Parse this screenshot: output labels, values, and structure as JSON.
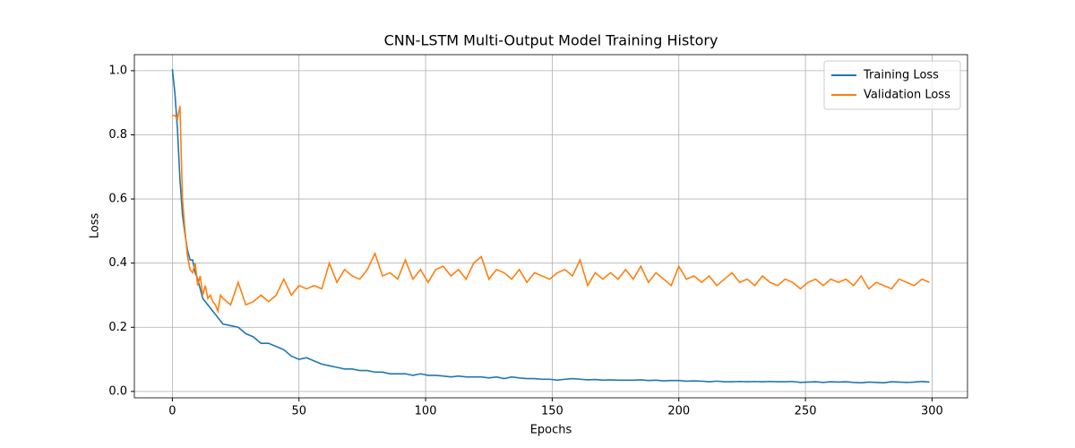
{
  "chart_data": {
    "type": "line",
    "title": "CNN-LSTM Multi-Output Model Training History",
    "x_label": "Epochs",
    "y_label": "Loss",
    "x": [
      0,
      1,
      2,
      3,
      4,
      5,
      6,
      7,
      8,
      9,
      10,
      11,
      12,
      13,
      14,
      15,
      16,
      17,
      18,
      19,
      20,
      23,
      26,
      29,
      32,
      35,
      38,
      41,
      44,
      47,
      50,
      53,
      56,
      59,
      62,
      65,
      68,
      71,
      74,
      77,
      80,
      83,
      86,
      89,
      92,
      95,
      98,
      101,
      104,
      107,
      110,
      113,
      116,
      119,
      122,
      125,
      128,
      131,
      134,
      137,
      140,
      143,
      146,
      149,
      152,
      155,
      158,
      161,
      164,
      167,
      170,
      173,
      176,
      179,
      182,
      185,
      188,
      191,
      194,
      197,
      200,
      203,
      206,
      209,
      212,
      215,
      218,
      221,
      224,
      227,
      230,
      233,
      236,
      239,
      242,
      245,
      248,
      251,
      254,
      257,
      260,
      263,
      266,
      269,
      272,
      275,
      278,
      281,
      284,
      287,
      290,
      293,
      296,
      299
    ],
    "series": [
      {
        "name": "Training Loss",
        "color": "#1f77b4",
        "values": [
          1.005,
          0.93,
          0.82,
          0.66,
          0.55,
          0.49,
          0.44,
          0.41,
          0.41,
          0.37,
          0.35,
          0.32,
          0.29,
          0.28,
          0.27,
          0.26,
          0.25,
          0.24,
          0.23,
          0.22,
          0.21,
          0.205,
          0.2,
          0.18,
          0.17,
          0.15,
          0.15,
          0.14,
          0.13,
          0.11,
          0.1,
          0.105,
          0.095,
          0.085,
          0.08,
          0.075,
          0.07,
          0.07,
          0.065,
          0.065,
          0.06,
          0.06,
          0.055,
          0.055,
          0.055,
          0.05,
          0.055,
          0.05,
          0.05,
          0.048,
          0.045,
          0.048,
          0.045,
          0.045,
          0.045,
          0.042,
          0.045,
          0.04,
          0.045,
          0.042,
          0.04,
          0.04,
          0.038,
          0.038,
          0.035,
          0.038,
          0.04,
          0.038,
          0.036,
          0.037,
          0.035,
          0.036,
          0.035,
          0.035,
          0.035,
          0.036,
          0.034,
          0.035,
          0.033,
          0.034,
          0.034,
          0.032,
          0.033,
          0.032,
          0.03,
          0.032,
          0.03,
          0.03,
          0.031,
          0.03,
          0.031,
          0.03,
          0.031,
          0.03,
          0.03,
          0.031,
          0.028,
          0.029,
          0.03,
          0.028,
          0.03,
          0.029,
          0.03,
          0.028,
          0.027,
          0.029,
          0.028,
          0.027,
          0.03,
          0.029,
          0.028,
          0.029,
          0.031,
          0.029
        ]
      },
      {
        "name": "Validation Loss",
        "color": "#ff7f0e",
        "values": [
          0.86,
          0.86,
          0.85,
          0.89,
          0.6,
          0.5,
          0.42,
          0.38,
          0.37,
          0.4,
          0.33,
          0.36,
          0.3,
          0.33,
          0.29,
          0.3,
          0.28,
          0.27,
          0.25,
          0.3,
          0.29,
          0.27,
          0.34,
          0.27,
          0.28,
          0.3,
          0.28,
          0.3,
          0.35,
          0.3,
          0.33,
          0.32,
          0.33,
          0.32,
          0.4,
          0.34,
          0.38,
          0.36,
          0.35,
          0.38,
          0.43,
          0.36,
          0.37,
          0.35,
          0.41,
          0.35,
          0.38,
          0.34,
          0.38,
          0.39,
          0.36,
          0.38,
          0.35,
          0.4,
          0.42,
          0.35,
          0.38,
          0.37,
          0.35,
          0.38,
          0.34,
          0.37,
          0.36,
          0.35,
          0.37,
          0.38,
          0.36,
          0.41,
          0.33,
          0.37,
          0.35,
          0.37,
          0.35,
          0.38,
          0.35,
          0.39,
          0.34,
          0.37,
          0.35,
          0.33,
          0.39,
          0.35,
          0.36,
          0.34,
          0.36,
          0.33,
          0.35,
          0.37,
          0.34,
          0.35,
          0.33,
          0.36,
          0.34,
          0.33,
          0.35,
          0.34,
          0.32,
          0.34,
          0.35,
          0.33,
          0.35,
          0.34,
          0.35,
          0.33,
          0.36,
          0.32,
          0.34,
          0.33,
          0.32,
          0.35,
          0.34,
          0.33,
          0.35,
          0.34
        ]
      }
    ],
    "xlim": [
      -15,
      314
    ],
    "ylim": [
      -0.02,
      1.05
    ],
    "xticks": [
      0,
      50,
      100,
      150,
      200,
      250,
      300
    ],
    "yticks": [
      {
        "value": 0,
        "label": "0.0"
      },
      0.2,
      0.4,
      0.6,
      0.8,
      {
        "value": 1,
        "label": "1.0"
      }
    ],
    "grid": true,
    "legend": "upper right"
  }
}
